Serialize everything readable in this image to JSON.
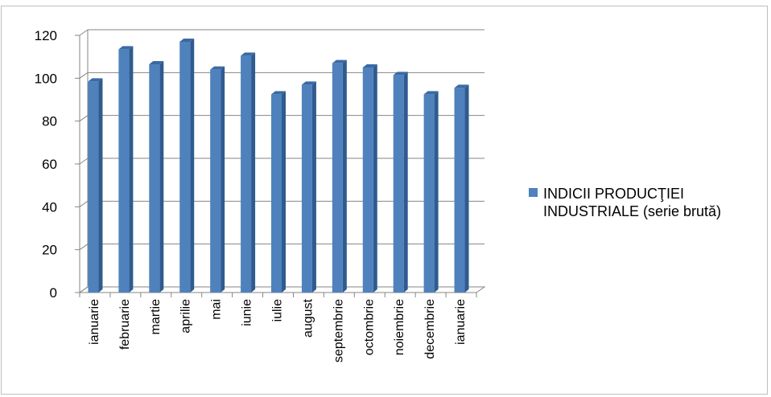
{
  "chart_data": {
    "type": "bar",
    "style": "3d-column",
    "categories": [
      "ianuarie",
      "februarie",
      "martie",
      "aprilie",
      "mai",
      "iunie",
      "iulie",
      "august",
      "septembrie",
      "octombrie",
      "noiembrie",
      "decembrie",
      "ianuarie"
    ],
    "series": [
      {
        "name": "INDICII PRODUCŢIEI INDUSTRIALE (serie brută)",
        "values": [
          98.5,
          113.5,
          106.5,
          117,
          104,
          110.5,
          92.5,
          97,
          107,
          105,
          101.5,
          92.5,
          95.5
        ],
        "color": "#4f81bd"
      }
    ],
    "ylim": [
      0,
      120
    ],
    "yticks": [
      0,
      20,
      40,
      60,
      80,
      100,
      120
    ],
    "grid": true,
    "legend": "right"
  }
}
